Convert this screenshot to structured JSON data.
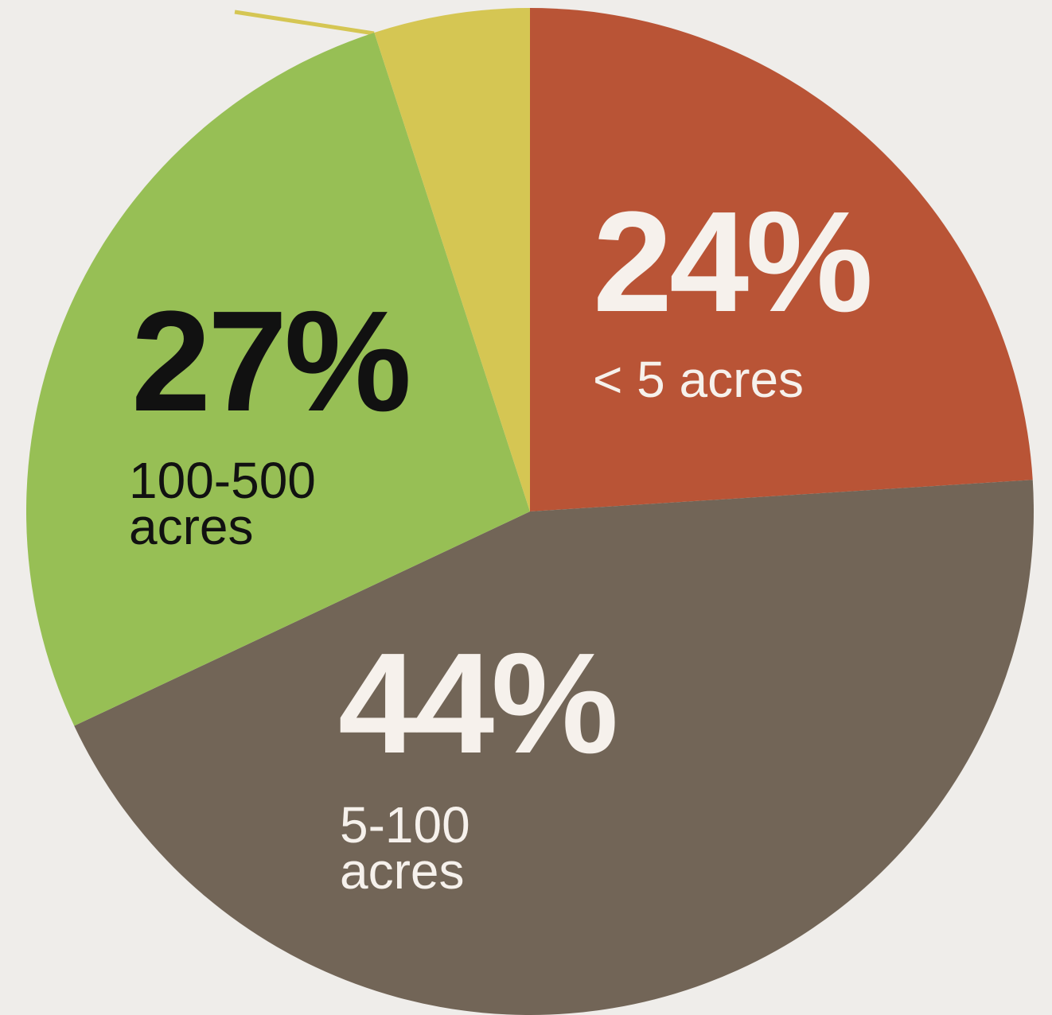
{
  "chart_data": {
    "type": "pie",
    "categories": [
      "< 5 acres",
      "5-100 acres",
      "100-500 acres",
      null
    ],
    "values": [
      24,
      44,
      27,
      5
    ],
    "value_labels": [
      "24%",
      "44%",
      "27%",
      null
    ],
    "colors": [
      "#b95436",
      "#726557",
      "#97bf55",
      "#d5c653"
    ]
  }
}
